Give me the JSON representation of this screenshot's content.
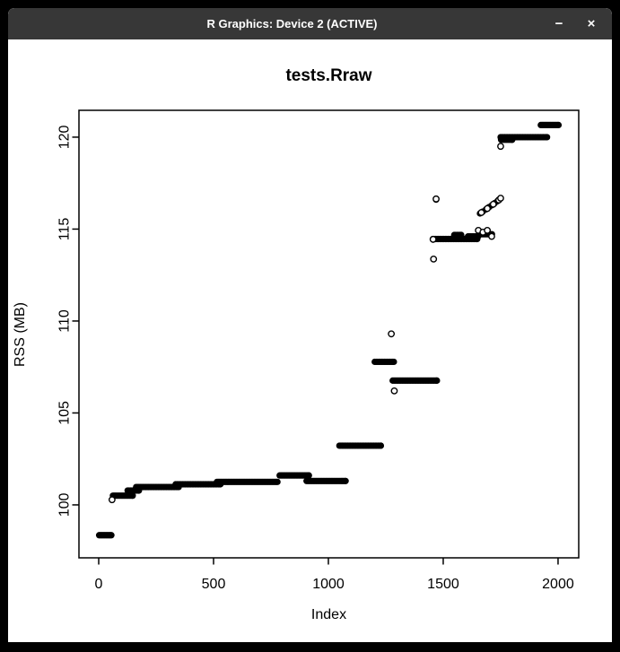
{
  "window": {
    "title": "R Graphics: Device 2 (ACTIVE)",
    "controls": {
      "minimize_glyph": "−",
      "close_glyph": "×"
    }
  },
  "colors": {
    "frame": "#000000",
    "titlebar_bg": "#373737",
    "titlebar_text": "#ffffff",
    "canvas_bg": "#ffffff",
    "plot_fg": "#000000"
  },
  "chart_data": {
    "type": "scatter",
    "title": "tests.Rraw",
    "xlabel": "Index",
    "ylabel": "RSS (MB)",
    "xlim": [
      -86,
      2090
    ],
    "ylim": [
      97.12,
      121.46
    ],
    "xticks": [
      0,
      500,
      1000,
      1500,
      2000
    ],
    "yticks": [
      100,
      105,
      110,
      115,
      120
    ],
    "grid": false,
    "legend": null,
    "runs": [
      {
        "x1": 2,
        "x2": 55,
        "y": 98.35
      },
      {
        "x1": 62,
        "x2": 148,
        "y": 100.5
      },
      {
        "x1": 126,
        "x2": 175,
        "y": 100.78
      },
      {
        "x1": 163,
        "x2": 348,
        "y": 100.97
      },
      {
        "x1": 335,
        "x2": 530,
        "y": 101.12
      },
      {
        "x1": 515,
        "x2": 778,
        "y": 101.25
      },
      {
        "x1": 788,
        "x2": 915,
        "y": 101.6
      },
      {
        "x1": 905,
        "x2": 1075,
        "y": 101.3
      },
      {
        "x1": 1048,
        "x2": 1228,
        "y": 103.22
      },
      {
        "x1": 1202,
        "x2": 1285,
        "y": 107.78
      },
      {
        "x1": 1280,
        "x2": 1472,
        "y": 106.76
      },
      {
        "x1": 1455,
        "x2": 1648,
        "y": 114.46
      },
      {
        "x1": 1548,
        "x2": 1578,
        "y": 114.68
      },
      {
        "x1": 1608,
        "x2": 1652,
        "y": 114.6
      },
      {
        "x1": 1668,
        "x2": 1712,
        "y": 114.72
      },
      {
        "x1": 1752,
        "x2": 1800,
        "y": 119.86
      },
      {
        "x1": 1750,
        "x2": 1952,
        "y": 120.0
      },
      {
        "x1": 1925,
        "x2": 2002,
        "y": 120.66
      }
    ],
    "filled_points": [
      [
        1469,
        116.6
      ],
      [
        1660,
        115.85
      ],
      [
        1672,
        115.95
      ],
      [
        1686,
        116.07
      ],
      [
        1700,
        116.2
      ],
      [
        1712,
        116.3
      ],
      [
        1724,
        116.41
      ],
      [
        1736,
        116.52
      ]
    ],
    "open_points": [
      [
        58,
        100.28
      ],
      [
        1274,
        109.3
      ],
      [
        1287,
        106.2
      ],
      [
        1458,
        113.37
      ],
      [
        1456,
        114.44
      ],
      [
        1653,
        114.93
      ],
      [
        1673,
        114.83
      ],
      [
        1692,
        114.93
      ],
      [
        1711,
        114.6
      ],
      [
        1469,
        116.64
      ],
      [
        1666,
        115.9
      ],
      [
        1692,
        116.12
      ],
      [
        1718,
        116.35
      ],
      [
        1742,
        116.58
      ],
      [
        1750,
        116.68
      ],
      [
        1750,
        119.5
      ]
    ]
  }
}
